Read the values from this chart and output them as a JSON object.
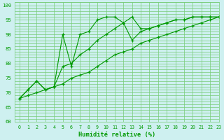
{
  "xlabel": "Humidité relative (%)",
  "bg_color": "#cef0f0",
  "grid_color": "#77cc77",
  "line_color": "#009900",
  "xlim": [
    -0.5,
    23
  ],
  "ylim": [
    60,
    101
  ],
  "yticks": [
    60,
    65,
    70,
    75,
    80,
    85,
    90,
    95,
    100
  ],
  "xticks": [
    0,
    1,
    2,
    3,
    4,
    5,
    6,
    7,
    8,
    9,
    10,
    11,
    12,
    13,
    14,
    15,
    16,
    17,
    18,
    19,
    20,
    21,
    22,
    23
  ],
  "line1_x": [
    0,
    1,
    2,
    3,
    4,
    5,
    6,
    7,
    8,
    9,
    10,
    11,
    12,
    13,
    14,
    15,
    16,
    17,
    18,
    19,
    20,
    21,
    22,
    23
  ],
  "line1_y": [
    68,
    71,
    74,
    71,
    72,
    90,
    79,
    90,
    91,
    95,
    96,
    96,
    94,
    96,
    92,
    92,
    93,
    94,
    95,
    95,
    96,
    96,
    96,
    96
  ],
  "line2_x": [
    0,
    1,
    2,
    3,
    4,
    5,
    6,
    7,
    8,
    9,
    10,
    11,
    12,
    13,
    14,
    15,
    16,
    17,
    18,
    19,
    20,
    21,
    22,
    23
  ],
  "line2_y": [
    68,
    71,
    74,
    71,
    72,
    79,
    80,
    83,
    85,
    88,
    90,
    92,
    94,
    88,
    91,
    92,
    93,
    94,
    95,
    95,
    96,
    96,
    96,
    96
  ],
  "line3_x": [
    0,
    1,
    2,
    3,
    4,
    5,
    6,
    7,
    8,
    9,
    10,
    11,
    12,
    13,
    14,
    15,
    16,
    17,
    18,
    19,
    20,
    21,
    22,
    23
  ],
  "line3_y": [
    68,
    69,
    70,
    71,
    72,
    73,
    75,
    76,
    77,
    79,
    81,
    83,
    84,
    85,
    87,
    88,
    89,
    90,
    91,
    92,
    93,
    94,
    95,
    96
  ]
}
